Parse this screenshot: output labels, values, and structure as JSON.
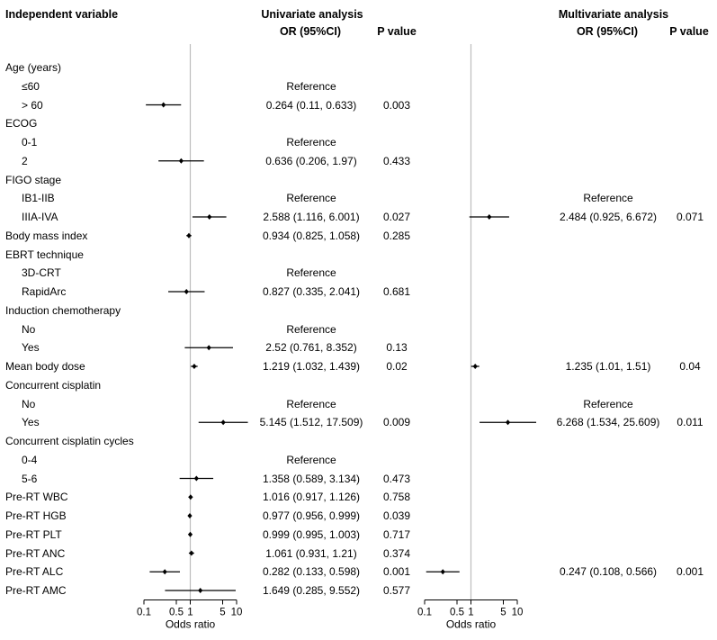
{
  "headers": {
    "variable": "Independent variable",
    "univariate": "Univariate analysis",
    "multivariate": "Multivariate analysis",
    "or_ci": "OR (95%CI)",
    "p_value": "P value"
  },
  "axis": {
    "label": "Odds ratio",
    "ticks": [
      "0.1",
      "0.5",
      "1",
      "5",
      "10"
    ]
  },
  "chart_data": {
    "type": "forest",
    "x_scale": "log",
    "reference_line": 1,
    "xlim": [
      0.1,
      10
    ],
    "xlabel": "Odds ratio",
    "panels": [
      "Univariate analysis",
      "Multivariate analysis"
    ],
    "rows": [
      {
        "label": "Age (years)",
        "indent": false
      },
      {
        "label": "≤60",
        "indent": true,
        "uni": {
          "text": "Reference"
        }
      },
      {
        "label": "> 60",
        "indent": true,
        "uni": {
          "or": 0.264,
          "lo": 0.11,
          "hi": 0.633,
          "text": "0.264 (0.11, 0.633)",
          "p": "0.003"
        }
      },
      {
        "label": "ECOG",
        "indent": false
      },
      {
        "label": "0-1",
        "indent": true,
        "uni": {
          "text": "Reference"
        }
      },
      {
        "label": "2",
        "indent": true,
        "uni": {
          "or": 0.636,
          "lo": 0.206,
          "hi": 1.97,
          "text": "0.636 (0.206, 1.97)",
          "p": "0.433"
        }
      },
      {
        "label": "FIGO stage",
        "indent": false
      },
      {
        "label": "IB1-IIB",
        "indent": true,
        "uni": {
          "text": "Reference"
        },
        "multi": {
          "text": "Reference"
        }
      },
      {
        "label": "IIIA-IVA",
        "indent": true,
        "uni": {
          "or": 2.588,
          "lo": 1.116,
          "hi": 6.001,
          "text": "2.588 (1.116, 6.001)",
          "p": "0.027"
        },
        "multi": {
          "or": 2.484,
          "lo": 0.925,
          "hi": 6.672,
          "text": "2.484 (0.925, 6.672)",
          "p": "0.071"
        }
      },
      {
        "label": "Body mass index",
        "indent": false,
        "uni": {
          "or": 0.934,
          "lo": 0.825,
          "hi": 1.058,
          "text": "0.934 (0.825, 1.058)",
          "p": "0.285"
        }
      },
      {
        "label": "EBRT technique",
        "indent": false
      },
      {
        "label": "3D-CRT",
        "indent": true,
        "uni": {
          "text": "Reference"
        }
      },
      {
        "label": "RapidArc",
        "indent": true,
        "uni": {
          "or": 0.827,
          "lo": 0.335,
          "hi": 2.041,
          "text": "0.827 (0.335, 2.041)",
          "p": "0.681"
        }
      },
      {
        "label": "Induction chemotherapy",
        "indent": false
      },
      {
        "label": "No",
        "indent": true,
        "uni": {
          "text": "Reference"
        }
      },
      {
        "label": "Yes",
        "indent": true,
        "uni": {
          "or": 2.52,
          "lo": 0.761,
          "hi": 8.352,
          "text": "2.52 (0.761, 8.352)",
          "p": "0.13"
        }
      },
      {
        "label": "Mean body dose",
        "indent": false,
        "uni": {
          "or": 1.219,
          "lo": 1.032,
          "hi": 1.439,
          "text": "1.219 (1.032, 1.439)",
          "p": "0.02"
        },
        "multi": {
          "or": 1.235,
          "lo": 1.01,
          "hi": 1.51,
          "text": "1.235 (1.01, 1.51)",
          "p": "0.04"
        }
      },
      {
        "label": "Concurrent cisplatin",
        "indent": false
      },
      {
        "label": "No",
        "indent": true,
        "uni": {
          "text": "Reference"
        },
        "multi": {
          "text": "Reference"
        }
      },
      {
        "label": "Yes",
        "indent": true,
        "uni": {
          "or": 5.145,
          "lo": 1.512,
          "hi": 17.509,
          "text": "5.145 (1.512, 17.509)",
          "p": "0.009"
        },
        "multi": {
          "or": 6.268,
          "lo": 1.534,
          "hi": 25.609,
          "text": "6.268 (1.534, 25.609)",
          "p": "0.011"
        }
      },
      {
        "label": "Concurrent cisplatin cycles",
        "indent": false
      },
      {
        "label": "0-4",
        "indent": true,
        "uni": {
          "text": "Reference"
        }
      },
      {
        "label": "5-6",
        "indent": true,
        "uni": {
          "or": 1.358,
          "lo": 0.589,
          "hi": 3.134,
          "text": "1.358 (0.589, 3.134)",
          "p": "0.473"
        }
      },
      {
        "label": "Pre-RT WBC",
        "indent": false,
        "uni": {
          "or": 1.016,
          "lo": 0.917,
          "hi": 1.126,
          "text": "1.016 (0.917, 1.126)",
          "p": "0.758"
        }
      },
      {
        "label": "Pre-RT HGB",
        "indent": false,
        "uni": {
          "or": 0.977,
          "lo": 0.956,
          "hi": 0.999,
          "text": "0.977 (0.956, 0.999)",
          "p": "0.039"
        }
      },
      {
        "label": "Pre-RT PLT",
        "indent": false,
        "uni": {
          "or": 0.999,
          "lo": 0.995,
          "hi": 1.003,
          "text": "0.999 (0.995, 1.003)",
          "p": "0.717"
        }
      },
      {
        "label": "Pre-RT ANC",
        "indent": false,
        "uni": {
          "or": 1.061,
          "lo": 0.931,
          "hi": 1.21,
          "text": "1.061 (0.931, 1.21)",
          "p": "0.374"
        }
      },
      {
        "label": "Pre-RT ALC",
        "indent": false,
        "uni": {
          "or": 0.282,
          "lo": 0.133,
          "hi": 0.598,
          "text": "0.282 (0.133, 0.598)",
          "p": "0.001"
        },
        "multi": {
          "or": 0.247,
          "lo": 0.108,
          "hi": 0.566,
          "text": "0.247 (0.108, 0.566)",
          "p": "0.001"
        }
      },
      {
        "label": "Pre-RT AMC",
        "indent": false,
        "uni": {
          "or": 1.649,
          "lo": 0.285,
          "hi": 9.552,
          "text": "1.649 (0.285, 9.552)",
          "p": "0.577"
        }
      }
    ]
  }
}
